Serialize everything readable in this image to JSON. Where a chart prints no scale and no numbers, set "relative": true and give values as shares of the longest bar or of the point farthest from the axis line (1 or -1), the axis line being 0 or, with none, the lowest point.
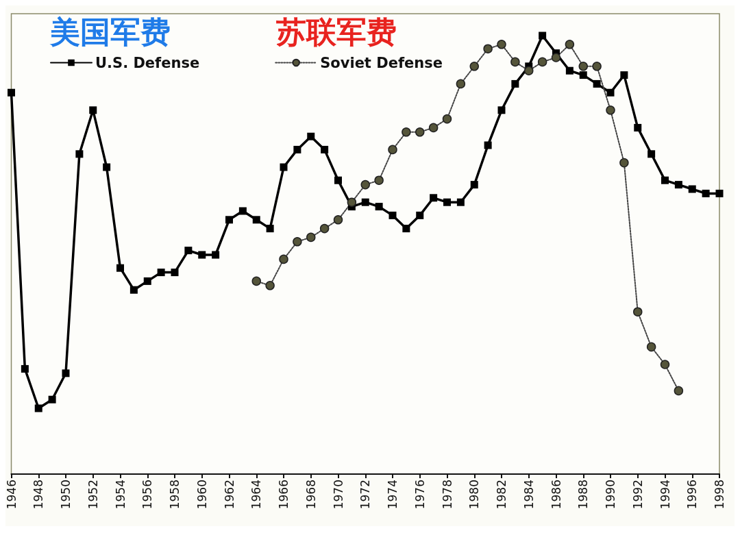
{
  "chart_data": {
    "type": "line",
    "relative": true,
    "annotations": [
      "美国军费",
      "苏联军费"
    ],
    "xlim": [
      1946,
      1998
    ],
    "xticks": [
      1946,
      1948,
      1950,
      1952,
      1954,
      1956,
      1958,
      1960,
      1962,
      1964,
      1966,
      1968,
      1970,
      1972,
      1974,
      1976,
      1978,
      1980,
      1982,
      1984,
      1986,
      1988,
      1990,
      1992,
      1994,
      1996,
      1998
    ],
    "legend": "top left",
    "grid": false,
    "series": [
      {
        "name": "U.S. Defense",
        "color": "#000000",
        "marker": "square",
        "line_style": "solid",
        "x": [
          1946,
          1947,
          1948,
          1949,
          1950,
          1951,
          1952,
          1953,
          1954,
          1955,
          1956,
          1957,
          1958,
          1959,
          1960,
          1961,
          1962,
          1963,
          1964,
          1965,
          1966,
          1967,
          1968,
          1969,
          1970,
          1971,
          1972,
          1973,
          1974,
          1975,
          1976,
          1977,
          1978,
          1979,
          1980,
          1981,
          1982,
          1983,
          1984,
          1985,
          1986,
          1987,
          1988,
          1989,
          1990,
          1991,
          1992,
          1993,
          1994,
          1995,
          1996,
          1997,
          1998
        ],
        "values": [
          0.87,
          0.24,
          0.15,
          0.17,
          0.23,
          0.73,
          0.83,
          0.7,
          0.47,
          0.42,
          0.44,
          0.46,
          0.46,
          0.51,
          0.5,
          0.5,
          0.58,
          0.6,
          0.58,
          0.56,
          0.7,
          0.74,
          0.77,
          0.74,
          0.67,
          0.61,
          0.62,
          0.61,
          0.59,
          0.56,
          0.59,
          0.63,
          0.62,
          0.62,
          0.66,
          0.75,
          0.83,
          0.89,
          0.93,
          1,
          0.96,
          0.92,
          0.91,
          0.89,
          0.87,
          0.91,
          0.79,
          0.73,
          0.67,
          0.66,
          0.65,
          0.64,
          0.64
        ]
      },
      {
        "name": "Soviet Defense",
        "color": "#55553a",
        "marker": "circle",
        "line_style": "dotted",
        "x": [
          1964,
          1965,
          1966,
          1967,
          1968,
          1969,
          1970,
          1971,
          1972,
          1973,
          1974,
          1975,
          1976,
          1977,
          1978,
          1979,
          1980,
          1981,
          1982,
          1983,
          1984,
          1985,
          1986,
          1987,
          1988,
          1989,
          1990,
          1991,
          1992,
          1993,
          1994,
          1995
        ],
        "values": [
          0.44,
          0.43,
          0.49,
          0.53,
          0.54,
          0.56,
          0.58,
          0.62,
          0.66,
          0.67,
          0.74,
          0.78,
          0.78,
          0.79,
          0.81,
          0.89,
          0.93,
          0.97,
          0.98,
          0.94,
          0.92,
          0.94,
          0.95,
          0.98,
          0.93,
          0.93,
          0.83,
          0.71,
          0.37,
          0.29,
          0.25,
          0.19
        ]
      }
    ]
  }
}
